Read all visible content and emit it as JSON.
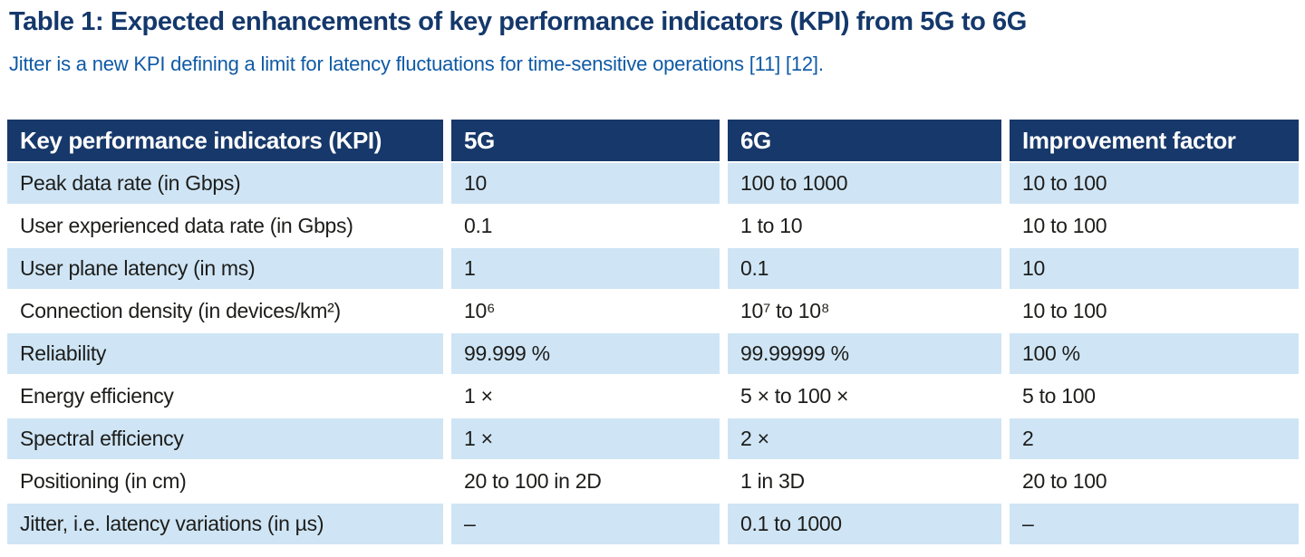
{
  "page": {
    "title": "Table 1: Expected enhancements of key performance indicators (KPI) from 5G to 6G",
    "subtitle": "Jitter is a new KPI defining a limit for latency fluctuations for time-sensitive operations [11] [12]."
  },
  "table": {
    "columns": [
      "Key performance indicators (KPI)",
      "5G",
      "6G",
      "Improvement factor"
    ],
    "rows": [
      {
        "kpi": "Peak data rate (in Gbps)",
        "g5": "10",
        "g6": "100 to 1000",
        "improvement": "10 to 100"
      },
      {
        "kpi": "User experienced data rate (in Gbps)",
        "g5": "0.1",
        "g6": "1 to 10",
        "improvement": "10 to 100"
      },
      {
        "kpi": "User plane latency (in ms)",
        "g5": "1",
        "g6": "0.1",
        "improvement": "10"
      },
      {
        "kpi": "Connection density (in devices/km²)",
        "g5": "10⁶",
        "g6": "10⁷ to 10⁸",
        "improvement": "10 to 100"
      },
      {
        "kpi": "Reliability",
        "g5": "99.999 %",
        "g6": "99.99999 %",
        "improvement": "100 %"
      },
      {
        "kpi": "Energy efficiency",
        "g5": "1 ×",
        "g6": "5 × to 100 ×",
        "improvement": "5 to 100"
      },
      {
        "kpi": "Spectral efficiency",
        "g5": "1 ×",
        "g6": "2 ×",
        "improvement": "2"
      },
      {
        "kpi": "Positioning (in cm)",
        "g5": "20 to 100 in 2D",
        "g6": "1 in 3D",
        "improvement": "20 to 100"
      },
      {
        "kpi": "Jitter, i.e. latency variations (in µs)",
        "g5": "–",
        "g6": "0.1 to 1000",
        "improvement": "–"
      }
    ]
  },
  "colors": {
    "header_bg": "#17386a",
    "title_color": "#14386b",
    "subtitle_color": "#0f5aa5",
    "row_alt_bg": "#cfe5f5",
    "row_bg": "#ffffff",
    "body_text": "#1d1d1b",
    "header_text": "#ffffff"
  }
}
